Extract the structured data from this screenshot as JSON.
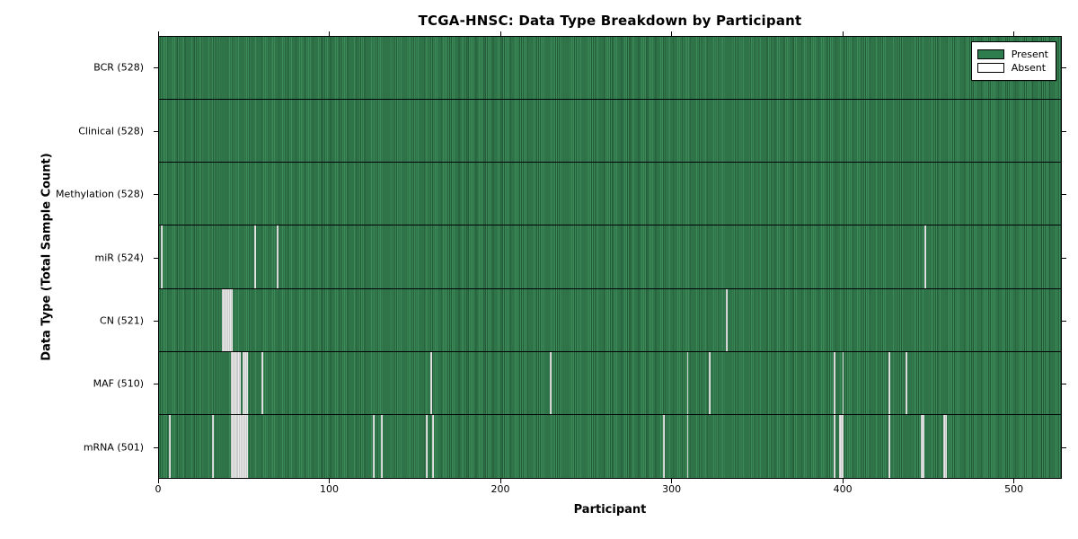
{
  "title": "TCGA-HNSC: Data Type Breakdown by Participant",
  "xlabel": "Participant",
  "ylabel": "Data Type (Total Sample Count)",
  "legend": {
    "present_label": "Present",
    "absent_label": "Absent",
    "position": "upper right"
  },
  "colors": {
    "present_green": "#2e7d4e",
    "present_stripe_light": "#3b8a58",
    "present_stripe_dark": "#235c38",
    "absent_white": "#e8e8e8",
    "axis_border": "#000000"
  },
  "chart_data": {
    "type": "heatmap",
    "title": "TCGA-HNSC: Data Type Breakdown by Participant",
    "xlabel": "Participant",
    "ylabel": "Data Type (Total Sample Count)",
    "x_range": [
      0,
      528
    ],
    "x_ticks": [
      0,
      100,
      200,
      300,
      400,
      500
    ],
    "n_participants": 528,
    "grid": false,
    "legend_entries": [
      "Present",
      "Absent"
    ],
    "legend_position": "upper right",
    "rows": [
      {
        "label": "BCR (528)",
        "data_type": "BCR",
        "present_count": 528,
        "absent_count": 0,
        "absent_participants": []
      },
      {
        "label": "Clinical (528)",
        "data_type": "Clinical",
        "present_count": 528,
        "absent_count": 0,
        "absent_participants": []
      },
      {
        "label": "Methylation (528)",
        "data_type": "Methylation",
        "present_count": 528,
        "absent_count": 0,
        "absent_participants": []
      },
      {
        "label": "miR (524)",
        "data_type": "miR",
        "present_count": 524,
        "absent_count": 4,
        "absent_participants": [
          1,
          56,
          69,
          448
        ]
      },
      {
        "label": "CN (521)",
        "data_type": "CN",
        "present_count": 521,
        "absent_count": 7,
        "absent_participants": [
          37,
          38,
          39,
          40,
          41,
          42,
          332
        ]
      },
      {
        "label": "MAF (510)",
        "data_type": "MAF",
        "present_count": 510,
        "absent_count": 18,
        "absent_participants": [
          42,
          43,
          44,
          45,
          46,
          47,
          49,
          50,
          51,
          60,
          159,
          229,
          309,
          322,
          395,
          400,
          427,
          437
        ]
      },
      {
        "label": "mRNA (501)",
        "data_type": "mRNA",
        "present_count": 501,
        "absent_count": 27,
        "absent_participants": [
          6,
          31,
          42,
          43,
          44,
          45,
          46,
          47,
          48,
          49,
          50,
          51,
          125,
          130,
          156,
          160,
          295,
          309,
          395,
          398,
          399,
          400,
          427,
          446,
          447,
          459,
          460
        ]
      }
    ]
  }
}
